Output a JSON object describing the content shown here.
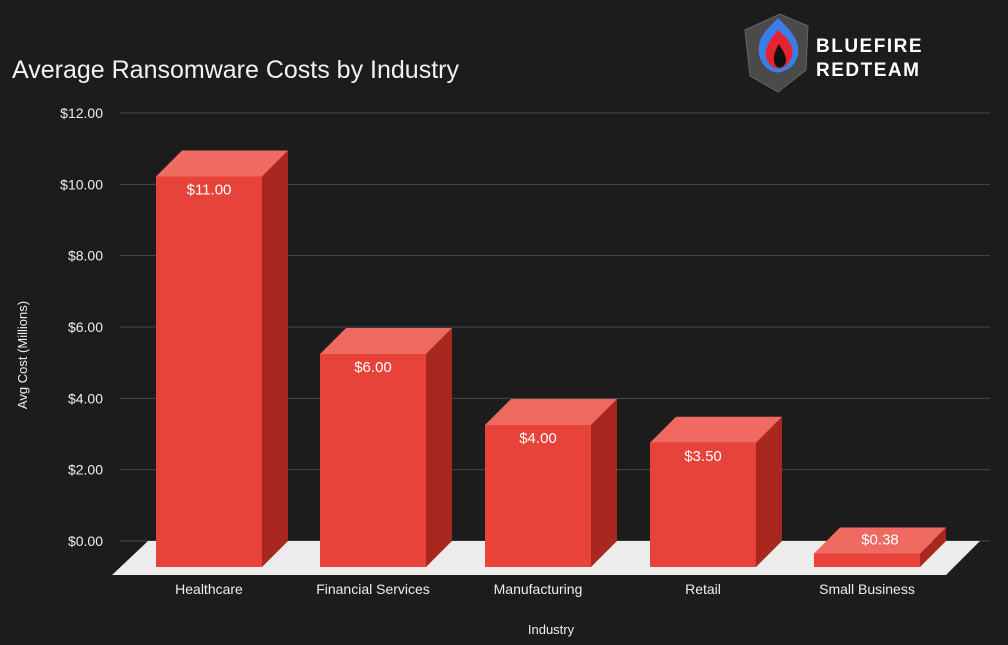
{
  "chart_data": {
    "type": "bar",
    "title": "Average Ransomware Costs by Industry",
    "xlabel": "Industry",
    "ylabel": "Avg Cost (Millions)",
    "categories": [
      "Healthcare",
      "Financial Services",
      "Manufacturing",
      "Retail",
      "Small Business"
    ],
    "values": [
      11.0,
      6.0,
      4.0,
      3.5,
      0.38
    ],
    "value_labels": [
      "$11.00",
      "$6.00",
      "$4.00",
      "$3.50",
      "$0.38"
    ],
    "ylim": [
      0,
      12
    ],
    "yticks": [
      "$0.00",
      "$2.00",
      "$4.00",
      "$6.00",
      "$8.00",
      "$10.00",
      "$12.00"
    ],
    "grid": true,
    "style": "3d",
    "colors": {
      "front": "#e8433a",
      "top": "#ef6b62",
      "side": "#a8271f",
      "floor": "#ececec",
      "background": "#1c1c1c"
    }
  },
  "logo": {
    "line1": "BLUEFIRE",
    "line2": "REDTEAM"
  }
}
